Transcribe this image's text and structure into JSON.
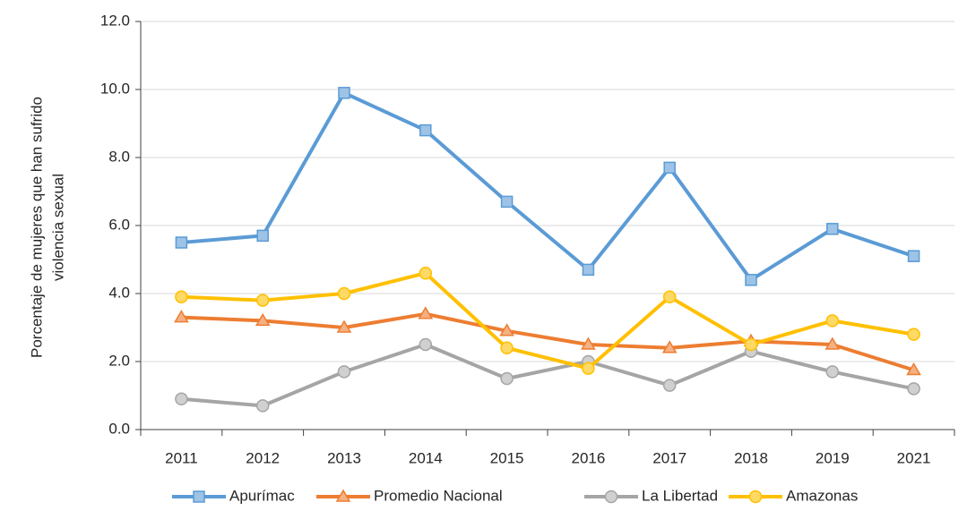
{
  "chart_data": {
    "type": "line",
    "ylabel": [
      "Porcentaje de mujeres que han sufrido",
      "violencia sexual"
    ],
    "categories": [
      "2011",
      "2012",
      "2013",
      "2014",
      "2015",
      "2016",
      "2017",
      "2018",
      "2019",
      "2021"
    ],
    "series": [
      {
        "name": "Apurímac",
        "color": "#5b9bd5",
        "marker": "square",
        "values": [
          5.5,
          5.7,
          9.9,
          8.8,
          6.7,
          4.7,
          7.7,
          4.4,
          5.9,
          5.1
        ]
      },
      {
        "name": "Promedio Nacional",
        "color": "#ed7d31",
        "marker": "triangle",
        "values": [
          3.3,
          3.2,
          3.0,
          3.4,
          2.9,
          2.5,
          2.4,
          2.6,
          2.5,
          1.75
        ]
      },
      {
        "name": "La Libertad",
        "color": "#a5a5a5",
        "marker": "circle",
        "values": [
          0.9,
          0.7,
          1.7,
          2.5,
          1.5,
          2.0,
          1.3,
          2.3,
          1.7,
          1.2
        ]
      },
      {
        "name": "Amazonas",
        "color": "#ffc000",
        "marker": "circle",
        "values": [
          3.9,
          3.8,
          4.0,
          4.6,
          2.4,
          1.8,
          3.9,
          2.5,
          3.2,
          2.8
        ]
      }
    ],
    "ylim": [
      0,
      12
    ],
    "yticks": [
      {
        "value": 0,
        "label": "0.0"
      },
      {
        "value": 2,
        "label": "2.0"
      },
      {
        "value": 4,
        "label": "4.0"
      },
      {
        "value": 6,
        "label": "6.0"
      },
      {
        "value": 8,
        "label": "8.0"
      },
      {
        "value": 10,
        "label": "10.0"
      },
      {
        "value": 12,
        "label": "12.0"
      }
    ],
    "grid": true,
    "legend": "bottom"
  }
}
